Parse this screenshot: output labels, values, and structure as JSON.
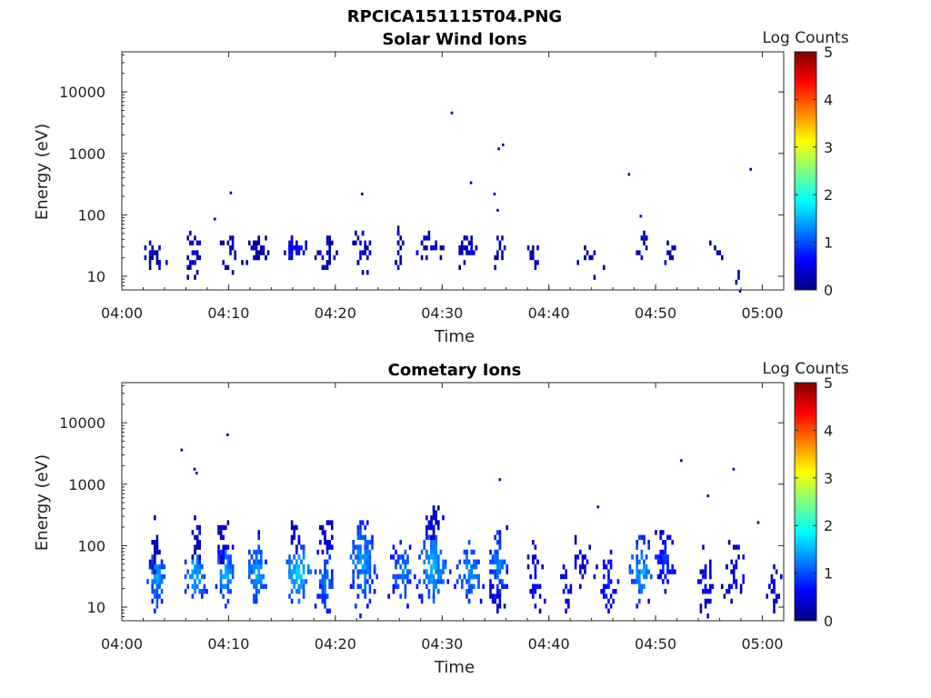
{
  "page_title": "RPCICA151115T04.PNG",
  "colormap": [
    "#00008f",
    "#0000ff",
    "#00ffff",
    "#ffff00",
    "#ff0000",
    "#800000"
  ],
  "chart_data": [
    {
      "type": "heatmap",
      "title": "Solar Wind Ions",
      "xlabel": "Time",
      "ylabel": "Energy (eV)",
      "x_ticks": [
        "04:00",
        "04:10",
        "04:20",
        "04:30",
        "04:40",
        "04:50",
        "05:00"
      ],
      "y_ticks": [
        "10",
        "100",
        "1000",
        "10000"
      ],
      "xlim_minutes": [
        0,
        62
      ],
      "ylim_ev": [
        6,
        45000
      ],
      "y_scale": "log",
      "colorbar": {
        "label": "Log Counts",
        "ticks": [
          "0",
          "1",
          "2",
          "3",
          "4",
          "5"
        ],
        "range": [
          0,
          5
        ]
      },
      "blobs": [
        {
          "t": 2.6,
          "e": 25,
          "w": 0.9,
          "h": 0.25,
          "n": 14,
          "lc": 0.2
        },
        {
          "t": 3.5,
          "e": 18,
          "w": 0.5,
          "h": 0.2,
          "n": 8,
          "lc": 0.2
        },
        {
          "t": 6.5,
          "e": 25,
          "w": 1.0,
          "h": 0.3,
          "n": 22,
          "lc": 0.3
        },
        {
          "t": 9.9,
          "e": 28,
          "w": 0.7,
          "h": 0.25,
          "n": 16,
          "lc": 0.3
        },
        {
          "t": 12.5,
          "e": 28,
          "w": 1.2,
          "h": 0.2,
          "n": 28,
          "lc": 0.3
        },
        {
          "t": 16.2,
          "e": 33,
          "w": 1.3,
          "h": 0.15,
          "n": 28,
          "lc": 0.55
        },
        {
          "t": 19.0,
          "e": 25,
          "w": 1.0,
          "h": 0.3,
          "n": 24,
          "lc": 0.3
        },
        {
          "t": 22.5,
          "e": 30,
          "w": 1.0,
          "h": 0.35,
          "n": 26,
          "lc": 0.3
        },
        {
          "t": 25.8,
          "e": 32,
          "w": 0.5,
          "h": 0.35,
          "n": 14,
          "lc": 0.25
        },
        {
          "t": 28.5,
          "e": 32,
          "w": 1.2,
          "h": 0.3,
          "n": 22,
          "lc": 0.3
        },
        {
          "t": 32.2,
          "e": 30,
          "w": 1.1,
          "h": 0.25,
          "n": 22,
          "lc": 0.3
        },
        {
          "t": 35.3,
          "e": 30,
          "w": 0.5,
          "h": 0.35,
          "n": 12,
          "lc": 0.25
        },
        {
          "t": 38.7,
          "e": 25,
          "w": 0.7,
          "h": 0.3,
          "n": 10,
          "lc": 0.2
        },
        {
          "t": 44.0,
          "e": 20,
          "w": 1.4,
          "h": 0.25,
          "n": 10,
          "lc": 0.2
        },
        {
          "t": 48.6,
          "e": 32,
          "w": 0.5,
          "h": 0.3,
          "n": 10,
          "lc": 0.2
        },
        {
          "t": 51.2,
          "e": 25,
          "w": 0.7,
          "h": 0.3,
          "n": 8,
          "lc": 0.2
        },
        {
          "t": 56.0,
          "e": 25,
          "w": 1.2,
          "h": 0.25,
          "n": 6,
          "lc": 0.2
        },
        {
          "t": 57.8,
          "e": 12,
          "w": 0.3,
          "h": 0.2,
          "n": 3,
          "lc": 0.2
        }
      ],
      "points": [
        [
          30.8,
          4800,
          0.1
        ],
        [
          35.6,
          1450,
          0.1
        ],
        [
          35.2,
          1250,
          0.1
        ],
        [
          32.6,
          350,
          0.1
        ],
        [
          10.1,
          240,
          0.1
        ],
        [
          22.4,
          230,
          0.1
        ],
        [
          34.8,
          230,
          0.1
        ],
        [
          35.1,
          125,
          0.1
        ],
        [
          47.4,
          480,
          0.1
        ],
        [
          58.8,
          580,
          0.1
        ],
        [
          48.5,
          100,
          0.1
        ],
        [
          8.6,
          90,
          0.1
        ],
        [
          57.8,
          6,
          0.1
        ]
      ]
    },
    {
      "type": "heatmap",
      "title": "Cometary Ions",
      "xlabel": "Time",
      "ylabel": "Energy (eV)",
      "x_ticks": [
        "04:00",
        "04:10",
        "04:20",
        "04:30",
        "04:40",
        "04:50",
        "05:00"
      ],
      "y_ticks": [
        "10",
        "100",
        "1000",
        "10000"
      ],
      "xlim_minutes": [
        0,
        62
      ],
      "ylim_ev": [
        6,
        45000
      ],
      "y_scale": "log",
      "colorbar": {
        "label": "Log Counts",
        "ticks": [
          "0",
          "1",
          "2",
          "3",
          "4",
          "5"
        ],
        "range": [
          0,
          5
        ]
      },
      "blobs": [
        {
          "t": 3.2,
          "e": 35,
          "w": 0.9,
          "h": 0.45,
          "n": 60,
          "lc": 1.2
        },
        {
          "t": 3.0,
          "e": 100,
          "w": 0.4,
          "h": 0.35,
          "n": 20,
          "lc": 0.3
        },
        {
          "t": 6.8,
          "e": 35,
          "w": 0.9,
          "h": 0.4,
          "n": 55,
          "lc": 1.3
        },
        {
          "t": 7.0,
          "e": 130,
          "w": 0.5,
          "h": 0.3,
          "n": 20,
          "lc": 0.3
        },
        {
          "t": 9.6,
          "e": 35,
          "w": 0.8,
          "h": 0.45,
          "n": 55,
          "lc": 1.3
        },
        {
          "t": 9.4,
          "e": 120,
          "w": 0.6,
          "h": 0.3,
          "n": 22,
          "lc": 0.4
        },
        {
          "t": 12.6,
          "e": 40,
          "w": 1.0,
          "h": 0.5,
          "n": 70,
          "lc": 1.2
        },
        {
          "t": 16.4,
          "e": 40,
          "w": 1.3,
          "h": 0.45,
          "n": 85,
          "lc": 1.4
        },
        {
          "t": 16.2,
          "e": 150,
          "w": 0.5,
          "h": 0.3,
          "n": 20,
          "lc": 0.4
        },
        {
          "t": 19.0,
          "e": 30,
          "w": 0.9,
          "h": 0.6,
          "n": 70,
          "lc": 1.0
        },
        {
          "t": 19.2,
          "e": 150,
          "w": 0.6,
          "h": 0.35,
          "n": 26,
          "lc": 0.4
        },
        {
          "t": 22.4,
          "e": 60,
          "w": 1.3,
          "h": 0.6,
          "n": 120,
          "lc": 1.2
        },
        {
          "t": 26.2,
          "e": 40,
          "w": 1.0,
          "h": 0.45,
          "n": 60,
          "lc": 1.1
        },
        {
          "t": 29.0,
          "e": 50,
          "w": 1.3,
          "h": 0.55,
          "n": 110,
          "lc": 1.3
        },
        {
          "t": 29.0,
          "e": 250,
          "w": 1.0,
          "h": 0.25,
          "n": 30,
          "lc": 0.4
        },
        {
          "t": 32.5,
          "e": 40,
          "w": 1.2,
          "h": 0.4,
          "n": 80,
          "lc": 1.2
        },
        {
          "t": 35.2,
          "e": 55,
          "w": 0.8,
          "h": 0.5,
          "n": 75,
          "lc": 1.1
        },
        {
          "t": 35.0,
          "e": 15,
          "w": 0.6,
          "h": 0.25,
          "n": 18,
          "lc": 0.5
        },
        {
          "t": 38.5,
          "e": 30,
          "w": 0.8,
          "h": 0.55,
          "n": 30,
          "lc": 0.5
        },
        {
          "t": 41.5,
          "e": 20,
          "w": 0.6,
          "h": 0.5,
          "n": 20,
          "lc": 0.5
        },
        {
          "t": 43.0,
          "e": 60,
          "w": 1.3,
          "h": 0.4,
          "n": 22,
          "lc": 0.4
        },
        {
          "t": 45.5,
          "e": 30,
          "w": 0.9,
          "h": 0.55,
          "n": 35,
          "lc": 0.7
        },
        {
          "t": 48.5,
          "e": 40,
          "w": 1.2,
          "h": 0.5,
          "n": 60,
          "lc": 1.2
        },
        {
          "t": 50.8,
          "e": 60,
          "w": 1.0,
          "h": 0.5,
          "n": 45,
          "lc": 0.7
        },
        {
          "t": 54.5,
          "e": 25,
          "w": 0.8,
          "h": 0.55,
          "n": 35,
          "lc": 0.5
        },
        {
          "t": 57.3,
          "e": 40,
          "w": 1.2,
          "h": 0.45,
          "n": 30,
          "lc": 0.4
        },
        {
          "t": 61.0,
          "e": 20,
          "w": 0.7,
          "h": 0.4,
          "n": 22,
          "lc": 0.4
        }
      ],
      "points": [
        [
          5.5,
          3800,
          0.1
        ],
        [
          6.7,
          1850,
          0.1
        ],
        [
          6.9,
          1600,
          0.1
        ],
        [
          9.8,
          6700,
          0.1
        ],
        [
          35.3,
          1250,
          0.1
        ],
        [
          52.3,
          2550,
          0.1
        ],
        [
          57.2,
          1850,
          0.1
        ],
        [
          54.8,
          680,
          0.1
        ],
        [
          44.5,
          450,
          0.1
        ],
        [
          59.5,
          250,
          0.1
        ]
      ]
    }
  ]
}
